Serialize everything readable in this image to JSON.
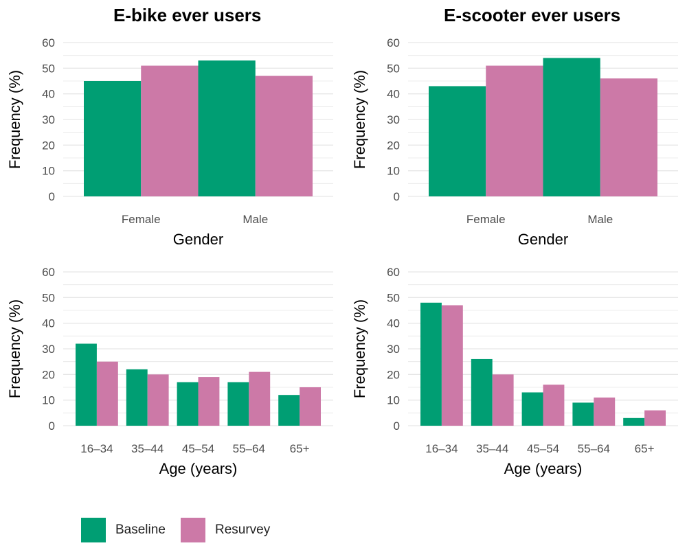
{
  "titles": {
    "ebike": "E-bike ever users",
    "escooter": "E-scooter ever users"
  },
  "colors": {
    "baseline": "#009E73",
    "resurvey": "#CC79A7",
    "grid": "#e6e6e6",
    "tick_text": "#4d4d4d",
    "axis_text": "#000000"
  },
  "legend": [
    {
      "label": "Baseline",
      "color": "#009E73"
    },
    {
      "label": "Resurvey",
      "color": "#CC79A7"
    }
  ],
  "chart_data": [
    {
      "type": "bar",
      "panel": "E-bike ever users",
      "categories": [
        "Female",
        "Male"
      ],
      "series": [
        {
          "name": "Baseline",
          "values": [
            45,
            53
          ]
        },
        {
          "name": "Resurvey",
          "values": [
            51,
            47
          ]
        }
      ],
      "xlabel": "Gender",
      "ylabel": "Frequency (%)",
      "ylim": [
        0,
        60
      ],
      "yticks": [
        0,
        10,
        20,
        30,
        40,
        50,
        60
      ],
      "grid": true
    },
    {
      "type": "bar",
      "panel": "E-scooter ever users",
      "categories": [
        "Female",
        "Male"
      ],
      "series": [
        {
          "name": "Baseline",
          "values": [
            43,
            54
          ]
        },
        {
          "name": "Resurvey",
          "values": [
            51,
            46
          ]
        }
      ],
      "xlabel": "Gender",
      "ylabel": "Frequency (%)",
      "ylim": [
        0,
        60
      ],
      "yticks": [
        0,
        10,
        20,
        30,
        40,
        50,
        60
      ],
      "grid": true
    },
    {
      "type": "bar",
      "panel": "E-bike ever users",
      "categories": [
        "16–34",
        "35–44",
        "45–54",
        "55–64",
        "65+"
      ],
      "series": [
        {
          "name": "Baseline",
          "values": [
            32,
            22,
            17,
            17,
            12
          ]
        },
        {
          "name": "Resurvey",
          "values": [
            25,
            20,
            19,
            21,
            15
          ]
        }
      ],
      "xlabel": "Age (years)",
      "ylabel": "Frequency (%)",
      "ylim": [
        0,
        60
      ],
      "yticks": [
        0,
        10,
        20,
        30,
        40,
        50,
        60
      ],
      "grid": true
    },
    {
      "type": "bar",
      "panel": "E-scooter ever users",
      "categories": [
        "16–34",
        "35–44",
        "45–54",
        "55–64",
        "65+"
      ],
      "series": [
        {
          "name": "Baseline",
          "values": [
            48,
            26,
            13,
            9,
            3
          ]
        },
        {
          "name": "Resurvey",
          "values": [
            47,
            20,
            16,
            11,
            6
          ]
        }
      ],
      "xlabel": "Age (years)",
      "ylabel": "Frequency (%)",
      "ylim": [
        0,
        60
      ],
      "yticks": [
        0,
        10,
        20,
        30,
        40,
        50,
        60
      ],
      "grid": true
    }
  ]
}
